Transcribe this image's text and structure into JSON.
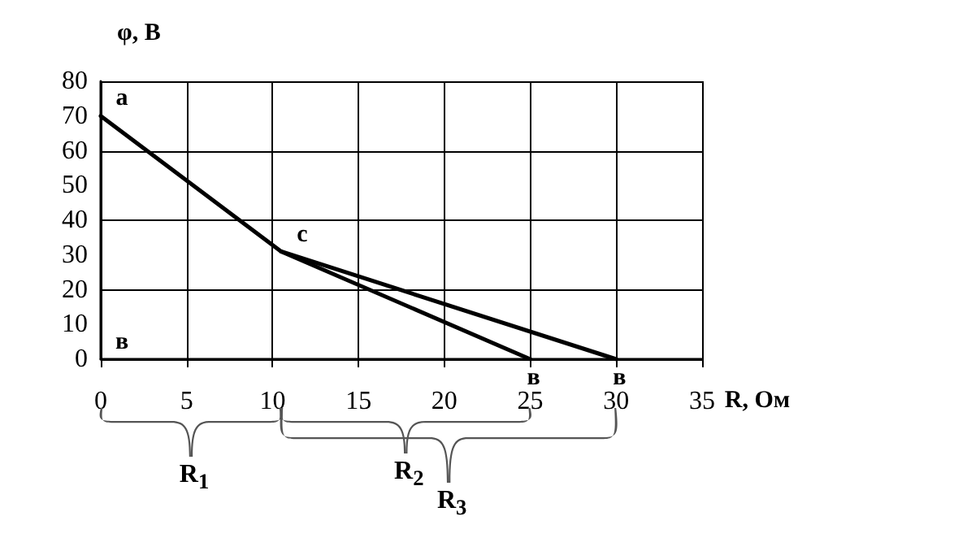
{
  "chart_data": {
    "type": "line",
    "xlabel": "R, Ом",
    "ylabel": "φ, В",
    "series": [
      {
        "color": "#000000",
        "x": [
          0,
          10.5,
          25
        ],
        "values": [
          70,
          31,
          0
        ]
      },
      {
        "color": "#000000",
        "x": [
          10.5,
          30
        ],
        "values": [
          31,
          0
        ]
      }
    ],
    "xlim": [
      0,
      35
    ],
    "xticks": [
      0,
      5,
      10,
      15,
      20,
      25,
      30,
      35
    ],
    "ylim": [
      0,
      80
    ],
    "yticks": [
      0,
      10,
      20,
      30,
      40,
      50,
      60,
      70,
      80
    ],
    "grid": true,
    "marker": "none",
    "line_style": "solid",
    "annotations": [
      {
        "text": "a",
        "x": 0,
        "y": 70
      },
      {
        "text": "c",
        "x": 10.5,
        "y": 31
      },
      "в",
      {
        "text": "в",
        "x": 25,
        "y": 0
      },
      {
        "text": "в",
        "x": 30,
        "y": 0
      },
      "R$_{1}$",
      "R$_{2}$",
      "R$_{3}$"
    ]
  }
}
